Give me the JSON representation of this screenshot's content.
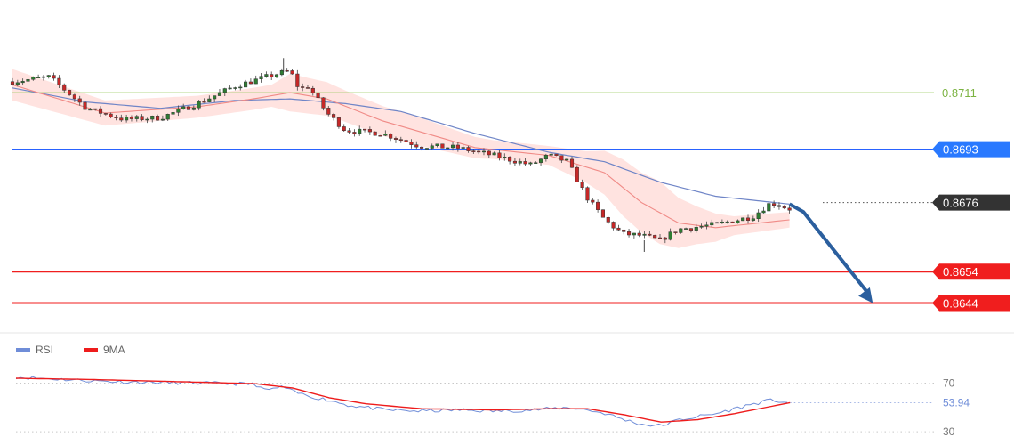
{
  "chart_data": [
    {
      "type": "candlestick",
      "title": "",
      "y_range": [
        0.86345,
        0.87405
      ],
      "x_range": [
        0,
        100
      ],
      "levels": [
        {
          "label": "0.8711",
          "value": 0.8711,
          "color": "#7cb342",
          "line_color": "#9ccc65",
          "style": "text-only"
        },
        {
          "label": "0.8693",
          "value": 0.8693,
          "color": "#2979ff",
          "line_color": "#2962ff",
          "style": "tag"
        },
        {
          "label": "0.8676",
          "value": 0.8676,
          "color": "#333333",
          "line_color": "#555555",
          "style": "tag-dotted"
        },
        {
          "label": "0.8654",
          "value": 0.8654,
          "color": "#f01e1e",
          "line_color": "#f01e1e",
          "style": "tag-thick"
        },
        {
          "label": "0.8644",
          "value": 0.8644,
          "color": "#f01e1e",
          "line_color": "#f01e1e",
          "style": "tag-thick"
        }
      ],
      "price_anchors": [
        [
          0,
          0.87145
        ],
        [
          4,
          0.8716
        ],
        [
          8,
          0.8706
        ],
        [
          12,
          0.87025
        ],
        [
          16,
          0.8703
        ],
        [
          20,
          0.87075
        ],
        [
          24,
          0.8713
        ],
        [
          28,
          0.87165
        ],
        [
          30,
          0.8718
        ],
        [
          31,
          0.8712
        ],
        [
          32,
          0.8713
        ],
        [
          34,
          0.87045
        ],
        [
          36,
          0.8699
        ],
        [
          40,
          0.8698
        ],
        [
          44,
          0.8694
        ],
        [
          48,
          0.86935
        ],
        [
          52,
          0.8691
        ],
        [
          56,
          0.8688
        ],
        [
          58,
          0.8691
        ],
        [
          60,
          0.8689
        ],
        [
          62,
          0.8678
        ],
        [
          64,
          0.86705
        ],
        [
          66,
          0.8666
        ],
        [
          68,
          0.86655
        ],
        [
          70,
          0.8664
        ],
        [
          72,
          0.86675
        ],
        [
          76,
          0.8669
        ],
        [
          80,
          0.86715
        ],
        [
          82,
          0.8676
        ],
        [
          84,
          0.8674
        ]
      ],
      "moving_average_anchors": [
        [
          0,
          0.87135
        ],
        [
          10,
          0.87045
        ],
        [
          20,
          0.87065
        ],
        [
          26,
          0.8709
        ],
        [
          30,
          0.8711
        ],
        [
          34,
          0.8709
        ],
        [
          40,
          0.8702
        ],
        [
          50,
          0.86935
        ],
        [
          58,
          0.8691
        ],
        [
          64,
          0.86855
        ],
        [
          68,
          0.8676
        ],
        [
          72,
          0.86695
        ],
        [
          76,
          0.8668
        ],
        [
          84,
          0.86705
        ]
      ],
      "slow_ma_anchors": [
        [
          0,
          0.87125
        ],
        [
          8,
          0.8708
        ],
        [
          16,
          0.8706
        ],
        [
          24,
          0.87085
        ],
        [
          30,
          0.8709
        ],
        [
          36,
          0.87075
        ],
        [
          42,
          0.8705
        ],
        [
          50,
          0.8698
        ],
        [
          58,
          0.8692
        ],
        [
          64,
          0.8689
        ],
        [
          70,
          0.86825
        ],
        [
          76,
          0.8678
        ],
        [
          84,
          0.86755
        ]
      ],
      "band_width_anchors": [
        [
          0,
          0.0005
        ],
        [
          10,
          0.0004
        ],
        [
          20,
          0.00035
        ],
        [
          28,
          0.00035
        ],
        [
          30,
          0.0006
        ],
        [
          36,
          0.0005
        ],
        [
          44,
          0.00045
        ],
        [
          52,
          0.0003
        ],
        [
          58,
          0.0003
        ],
        [
          62,
          0.0005
        ],
        [
          66,
          0.0009
        ],
        [
          70,
          0.001
        ],
        [
          74,
          0.0006
        ],
        [
          78,
          0.0003
        ],
        [
          84,
          0.00025
        ]
      ],
      "forecast_arrow": {
        "from": [
          84,
          0.86755
        ],
        "via": [
          85.5,
          0.8673
        ],
        "to": [
          93,
          0.8644
        ],
        "color": "#2b5f9e"
      }
    },
    {
      "type": "line",
      "title": "",
      "legend": [
        {
          "name": "RSI",
          "color": "#6f8dd8"
        },
        {
          "name": "9MA",
          "color": "#ee1c1c"
        }
      ],
      "y_ticks": [
        {
          "label": "70",
          "value": 70
        },
        {
          "label": "30",
          "value": 30
        }
      ],
      "y_range": [
        25,
        85
      ],
      "x_range": [
        0,
        100
      ],
      "current_value": {
        "label": "53.94",
        "value": 53.94,
        "color": "#6f8dd8"
      },
      "series": [
        {
          "name": "RSI",
          "points": [
            [
              0,
              75
            ],
            [
              4,
              73.5
            ],
            [
              8,
              72
            ],
            [
              12,
              71
            ],
            [
              16,
              70.5
            ],
            [
              20,
              70
            ],
            [
              24,
              69.5
            ],
            [
              26,
              69
            ],
            [
              27,
              64
            ],
            [
              29,
              67
            ],
            [
              30,
              63
            ],
            [
              32,
              59
            ],
            [
              34,
              56
            ],
            [
              36,
              52
            ],
            [
              40,
              48
            ],
            [
              44,
              47
            ],
            [
              48,
              48
            ],
            [
              52,
              47
            ],
            [
              56,
              48
            ],
            [
              58,
              49
            ],
            [
              60,
              50
            ],
            [
              62,
              48
            ],
            [
              64,
              45
            ],
            [
              66,
              40
            ],
            [
              68,
              36
            ],
            [
              70,
              35
            ],
            [
              72,
              40
            ],
            [
              76,
              45
            ],
            [
              80,
              53
            ],
            [
              82,
              56
            ],
            [
              84,
              54
            ]
          ]
        },
        {
          "name": "9MA",
          "points": [
            [
              0,
              74
            ],
            [
              8,
              73
            ],
            [
              16,
              71.5
            ],
            [
              26,
              69.5
            ],
            [
              30,
              66
            ],
            [
              34,
              58
            ],
            [
              38,
              53
            ],
            [
              44,
              49
            ],
            [
              52,
              48
            ],
            [
              58,
              49
            ],
            [
              62,
              49
            ],
            [
              66,
              44
            ],
            [
              70,
              38
            ],
            [
              74,
              40
            ],
            [
              78,
              45
            ],
            [
              84,
              54
            ]
          ]
        }
      ]
    }
  ]
}
